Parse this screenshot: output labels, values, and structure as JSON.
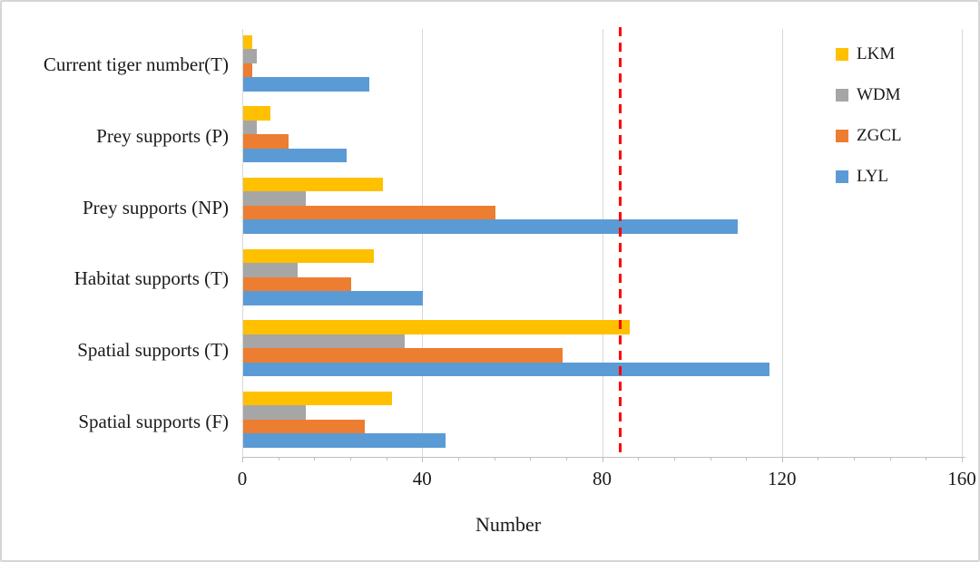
{
  "chart_data": {
    "type": "bar",
    "orientation": "horizontal",
    "title": "",
    "xlabel": "Number",
    "ylabel": "",
    "xlim": [
      0,
      160
    ],
    "x_major_ticks": [
      0,
      40,
      80,
      120,
      160
    ],
    "x_tick_labels": [
      "0",
      "40",
      "80",
      "120",
      "160"
    ],
    "x_minor_tick_step": 8,
    "grid": true,
    "categories": [
      "Current tiger number(T)",
      "Prey supports (P)",
      "Prey supports (NP)",
      "Habitat supports (T)",
      "Spatial supports (T)",
      "Spatial supports (F)"
    ],
    "series": [
      {
        "name": "LKM",
        "color": "#FFC000",
        "values": [
          2,
          6,
          31,
          29,
          86,
          33
        ]
      },
      {
        "name": "WDM",
        "color": "#A6A6A6",
        "values": [
          3,
          3,
          14,
          12,
          36,
          14
        ]
      },
      {
        "name": "ZGCL",
        "color": "#ED7D31",
        "values": [
          2,
          10,
          56,
          24,
          71,
          27
        ]
      },
      {
        "name": "LYL",
        "color": "#5B9BD5",
        "values": [
          28,
          23,
          110,
          40,
          117,
          45
        ]
      }
    ],
    "legend": {
      "position": "top-right",
      "entries": [
        "LKM",
        "WDM",
        "ZGCL",
        "LYL"
      ]
    },
    "reference_line": {
      "value": 84,
      "color": "#FF0000",
      "style": "dashed"
    },
    "colors": {
      "gridline": "#d9d9d9",
      "axis": "#bfbfbf",
      "text": "#1a1a1a",
      "background": "#ffffff"
    }
  }
}
